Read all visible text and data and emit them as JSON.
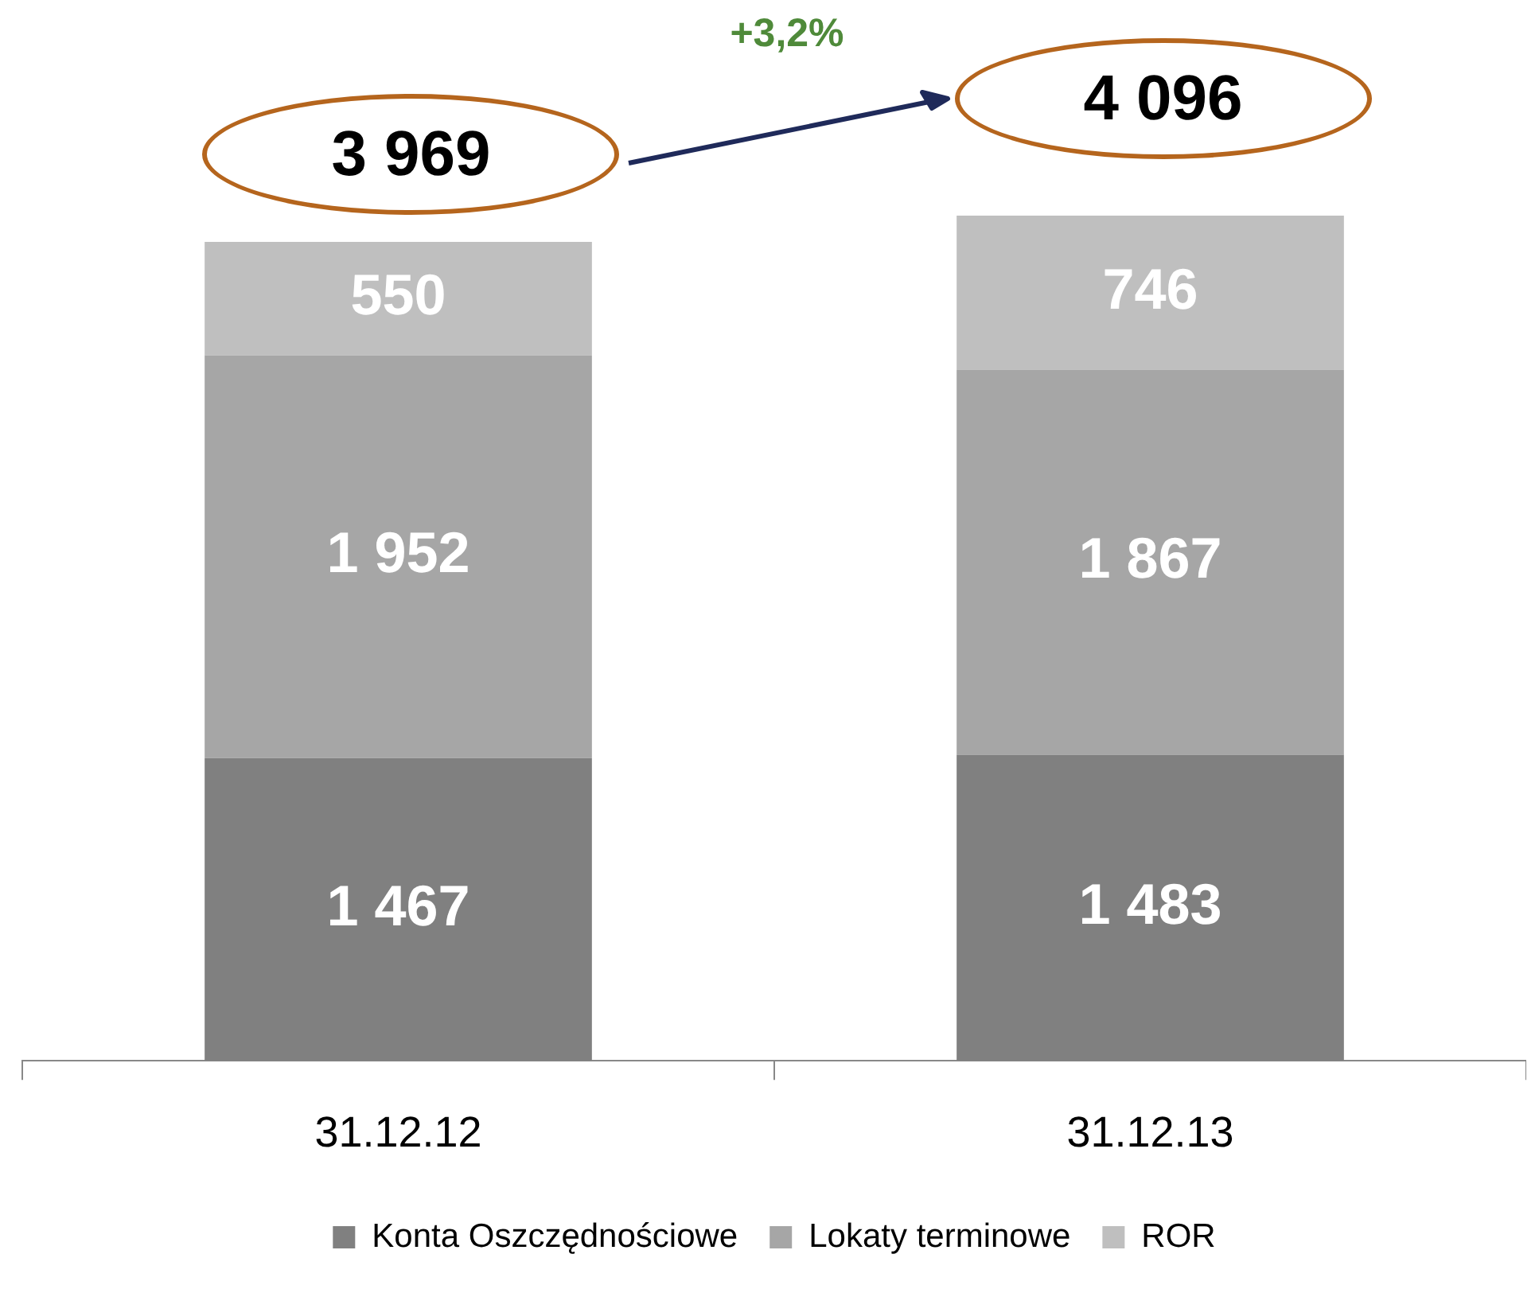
{
  "chart_data": {
    "type": "bar",
    "stacked": true,
    "categories": [
      "31.12.12",
      "31.12.13"
    ],
    "series": [
      {
        "name": "Konta Oszczędnościowe",
        "color": "#808080",
        "values": [
          1467,
          1483
        ],
        "value_labels": [
          "1 467",
          "1 483"
        ]
      },
      {
        "name": "Lokaty terminowe",
        "color": "#a6a6a6",
        "values": [
          1952,
          1867
        ],
        "value_labels": [
          "1 952",
          "1 867"
        ]
      },
      {
        "name": "ROR",
        "color": "#bfbfbf",
        "values": [
          550,
          746
        ],
        "value_labels": [
          "550",
          "746"
        ]
      }
    ],
    "totals": [
      "3 969",
      "4 096"
    ],
    "annotations": [
      "+3,2%"
    ],
    "legend": "bottom",
    "grid": false
  }
}
